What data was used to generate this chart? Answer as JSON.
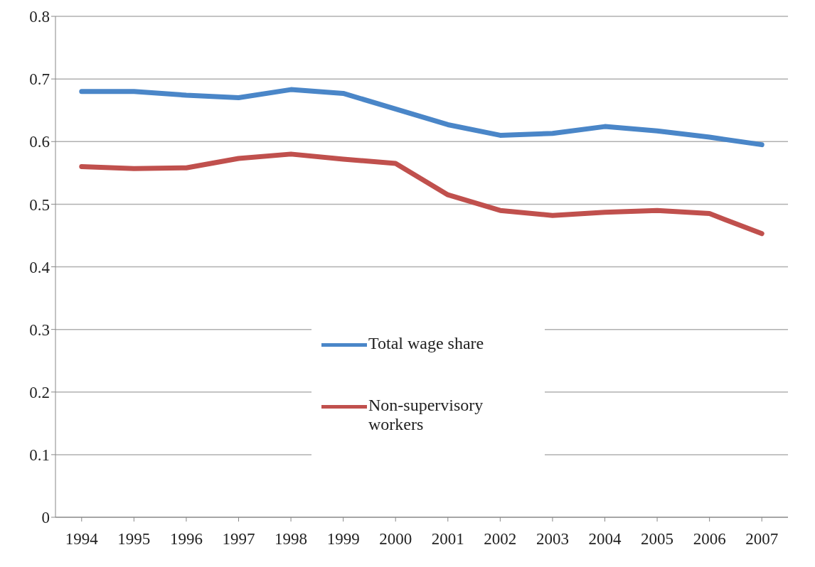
{
  "chart_data": {
    "type": "line",
    "categories": [
      "1994",
      "1995",
      "1996",
      "1997",
      "1998",
      "1999",
      "2000",
      "2001",
      "2002",
      "2003",
      "2004",
      "2005",
      "2006",
      "2007"
    ],
    "series": [
      {
        "name": "Total wage share",
        "color": "#4a86c8",
        "values": [
          0.68,
          0.68,
          0.674,
          0.67,
          0.683,
          0.677,
          0.652,
          0.627,
          0.61,
          0.613,
          0.624,
          0.617,
          0.607,
          0.595
        ]
      },
      {
        "name": "Non-supervisory workers",
        "color": "#c0504d",
        "values": [
          0.56,
          0.557,
          0.558,
          0.573,
          0.58,
          0.572,
          0.565,
          0.515,
          0.49,
          0.482,
          0.487,
          0.49,
          0.485,
          0.453
        ]
      }
    ],
    "ylim": [
      0,
      0.8
    ],
    "yticks": [
      0,
      0.1,
      0.2,
      0.3,
      0.4,
      0.5,
      0.6,
      0.7,
      0.8
    ],
    "grid": "y",
    "legend": "center",
    "marker": "none",
    "line_style": "solid"
  }
}
